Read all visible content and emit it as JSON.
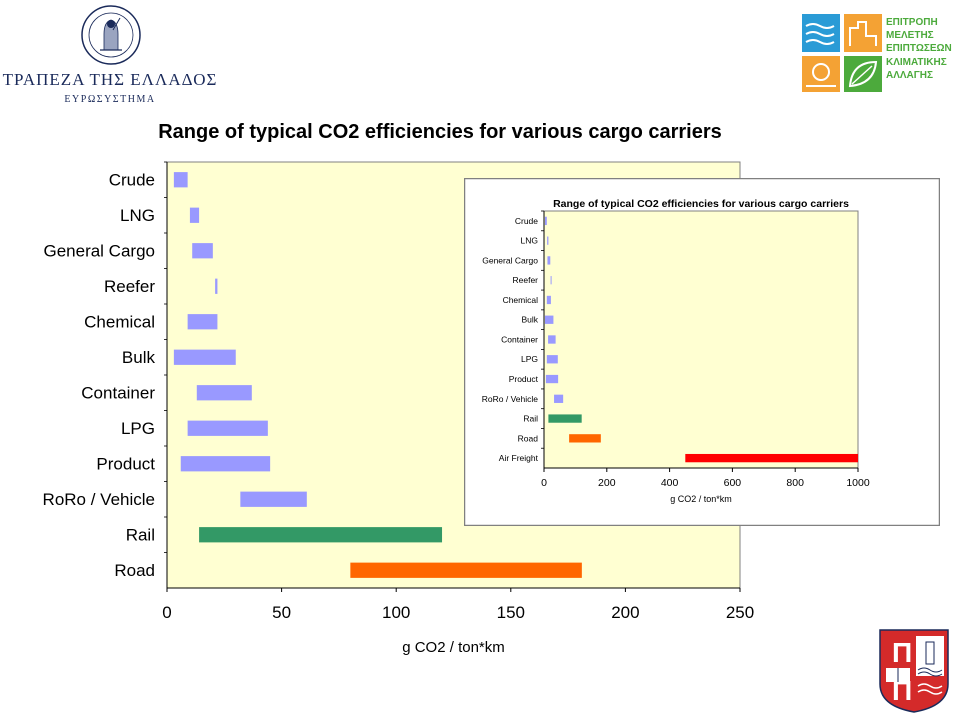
{
  "logos": {
    "bank": {
      "name_line1": "ΤΡΑΠΕΖΑ ΤΗΣ ΕΛΛΑΔΟΣ",
      "name_line2": "ΕΥΡΩΣΥΣΤΗΜΑ",
      "seal_text": "ΤΡΑΠΕΖΑ ΤΗΣ ΕΛΛΑΔΟΣ",
      "seal_year": "1928"
    },
    "committee": {
      "lines": [
        "ΕΠΙΤΡΟΠΗ",
        "ΜΕΛΕΤΗΣ",
        "ΕΠΙΠΤΩΣΕΩΝ",
        "ΚΛΙΜΑΤΙΚΗΣ",
        "ΑΛΛΑΓΗΣ"
      ],
      "text_color": "#4caa3c",
      "tile_colors": [
        "#2a9bd6",
        "#f4a234",
        "#f4a234",
        "#4caa3c"
      ]
    },
    "university": {
      "letters": [
        "Π",
        "Π"
      ],
      "color": "#d42a2a"
    }
  },
  "chart_data": [
    {
      "type": "bar",
      "subtype": "floating-range-horizontal",
      "title": "Range of typical CO2 efficiencies for various cargo carriers",
      "xlabel": "g CO2 / ton*km",
      "ylabel": "",
      "xlim": [
        0,
        250
      ],
      "xticks": [
        0,
        50,
        100,
        150,
        200,
        250
      ],
      "grid": false,
      "plot_background": "#ffffd2",
      "categories": [
        "Crude",
        "LNG",
        "General Cargo",
        "Reefer",
        "Chemical",
        "Bulk",
        "Container",
        "LPG",
        "Product",
        "RoRo / Vehicle",
        "Rail",
        "Road"
      ],
      "ranges": [
        [
          3,
          9
        ],
        [
          10,
          14
        ],
        [
          11,
          20
        ],
        [
          21,
          22
        ],
        [
          9,
          22
        ],
        [
          3,
          30
        ],
        [
          13,
          37
        ],
        [
          9,
          44
        ],
        [
          6,
          45
        ],
        [
          32,
          61
        ],
        [
          14,
          120
        ],
        [
          80,
          181
        ]
      ],
      "colors": [
        "#9999ff",
        "#9999ff",
        "#9999ff",
        "#9999ff",
        "#9999ff",
        "#9999ff",
        "#9999ff",
        "#9999ff",
        "#9999ff",
        "#9999ff",
        "#339966",
        "#ff6600"
      ]
    },
    {
      "type": "bar",
      "subtype": "floating-range-horizontal",
      "title": "Range of typical CO2 efficiencies for various cargo carriers",
      "xlabel": "g CO2 / ton*km",
      "ylabel": "",
      "xlim": [
        0,
        1000
      ],
      "xticks": [
        0,
        200,
        400,
        600,
        800,
        1000
      ],
      "grid": false,
      "plot_background": "#ffffd2",
      "categories": [
        "Crude",
        "LNG",
        "General Cargo",
        "Reefer",
        "Chemical",
        "Bulk",
        "Container",
        "LPG",
        "Product",
        "RoRo / Vehicle",
        "Rail",
        "Road",
        "Air Freight"
      ],
      "ranges": [
        [
          3,
          9
        ],
        [
          10,
          14
        ],
        [
          11,
          20
        ],
        [
          21,
          22
        ],
        [
          9,
          22
        ],
        [
          3,
          30
        ],
        [
          13,
          37
        ],
        [
          9,
          44
        ],
        [
          6,
          45
        ],
        [
          32,
          61
        ],
        [
          14,
          120
        ],
        [
          80,
          181
        ],
        [
          450,
          1000
        ]
      ],
      "colors": [
        "#9999ff",
        "#9999ff",
        "#9999ff",
        "#9999ff",
        "#9999ff",
        "#9999ff",
        "#9999ff",
        "#9999ff",
        "#9999ff",
        "#9999ff",
        "#339966",
        "#ff6600",
        "#ff0000"
      ]
    }
  ]
}
